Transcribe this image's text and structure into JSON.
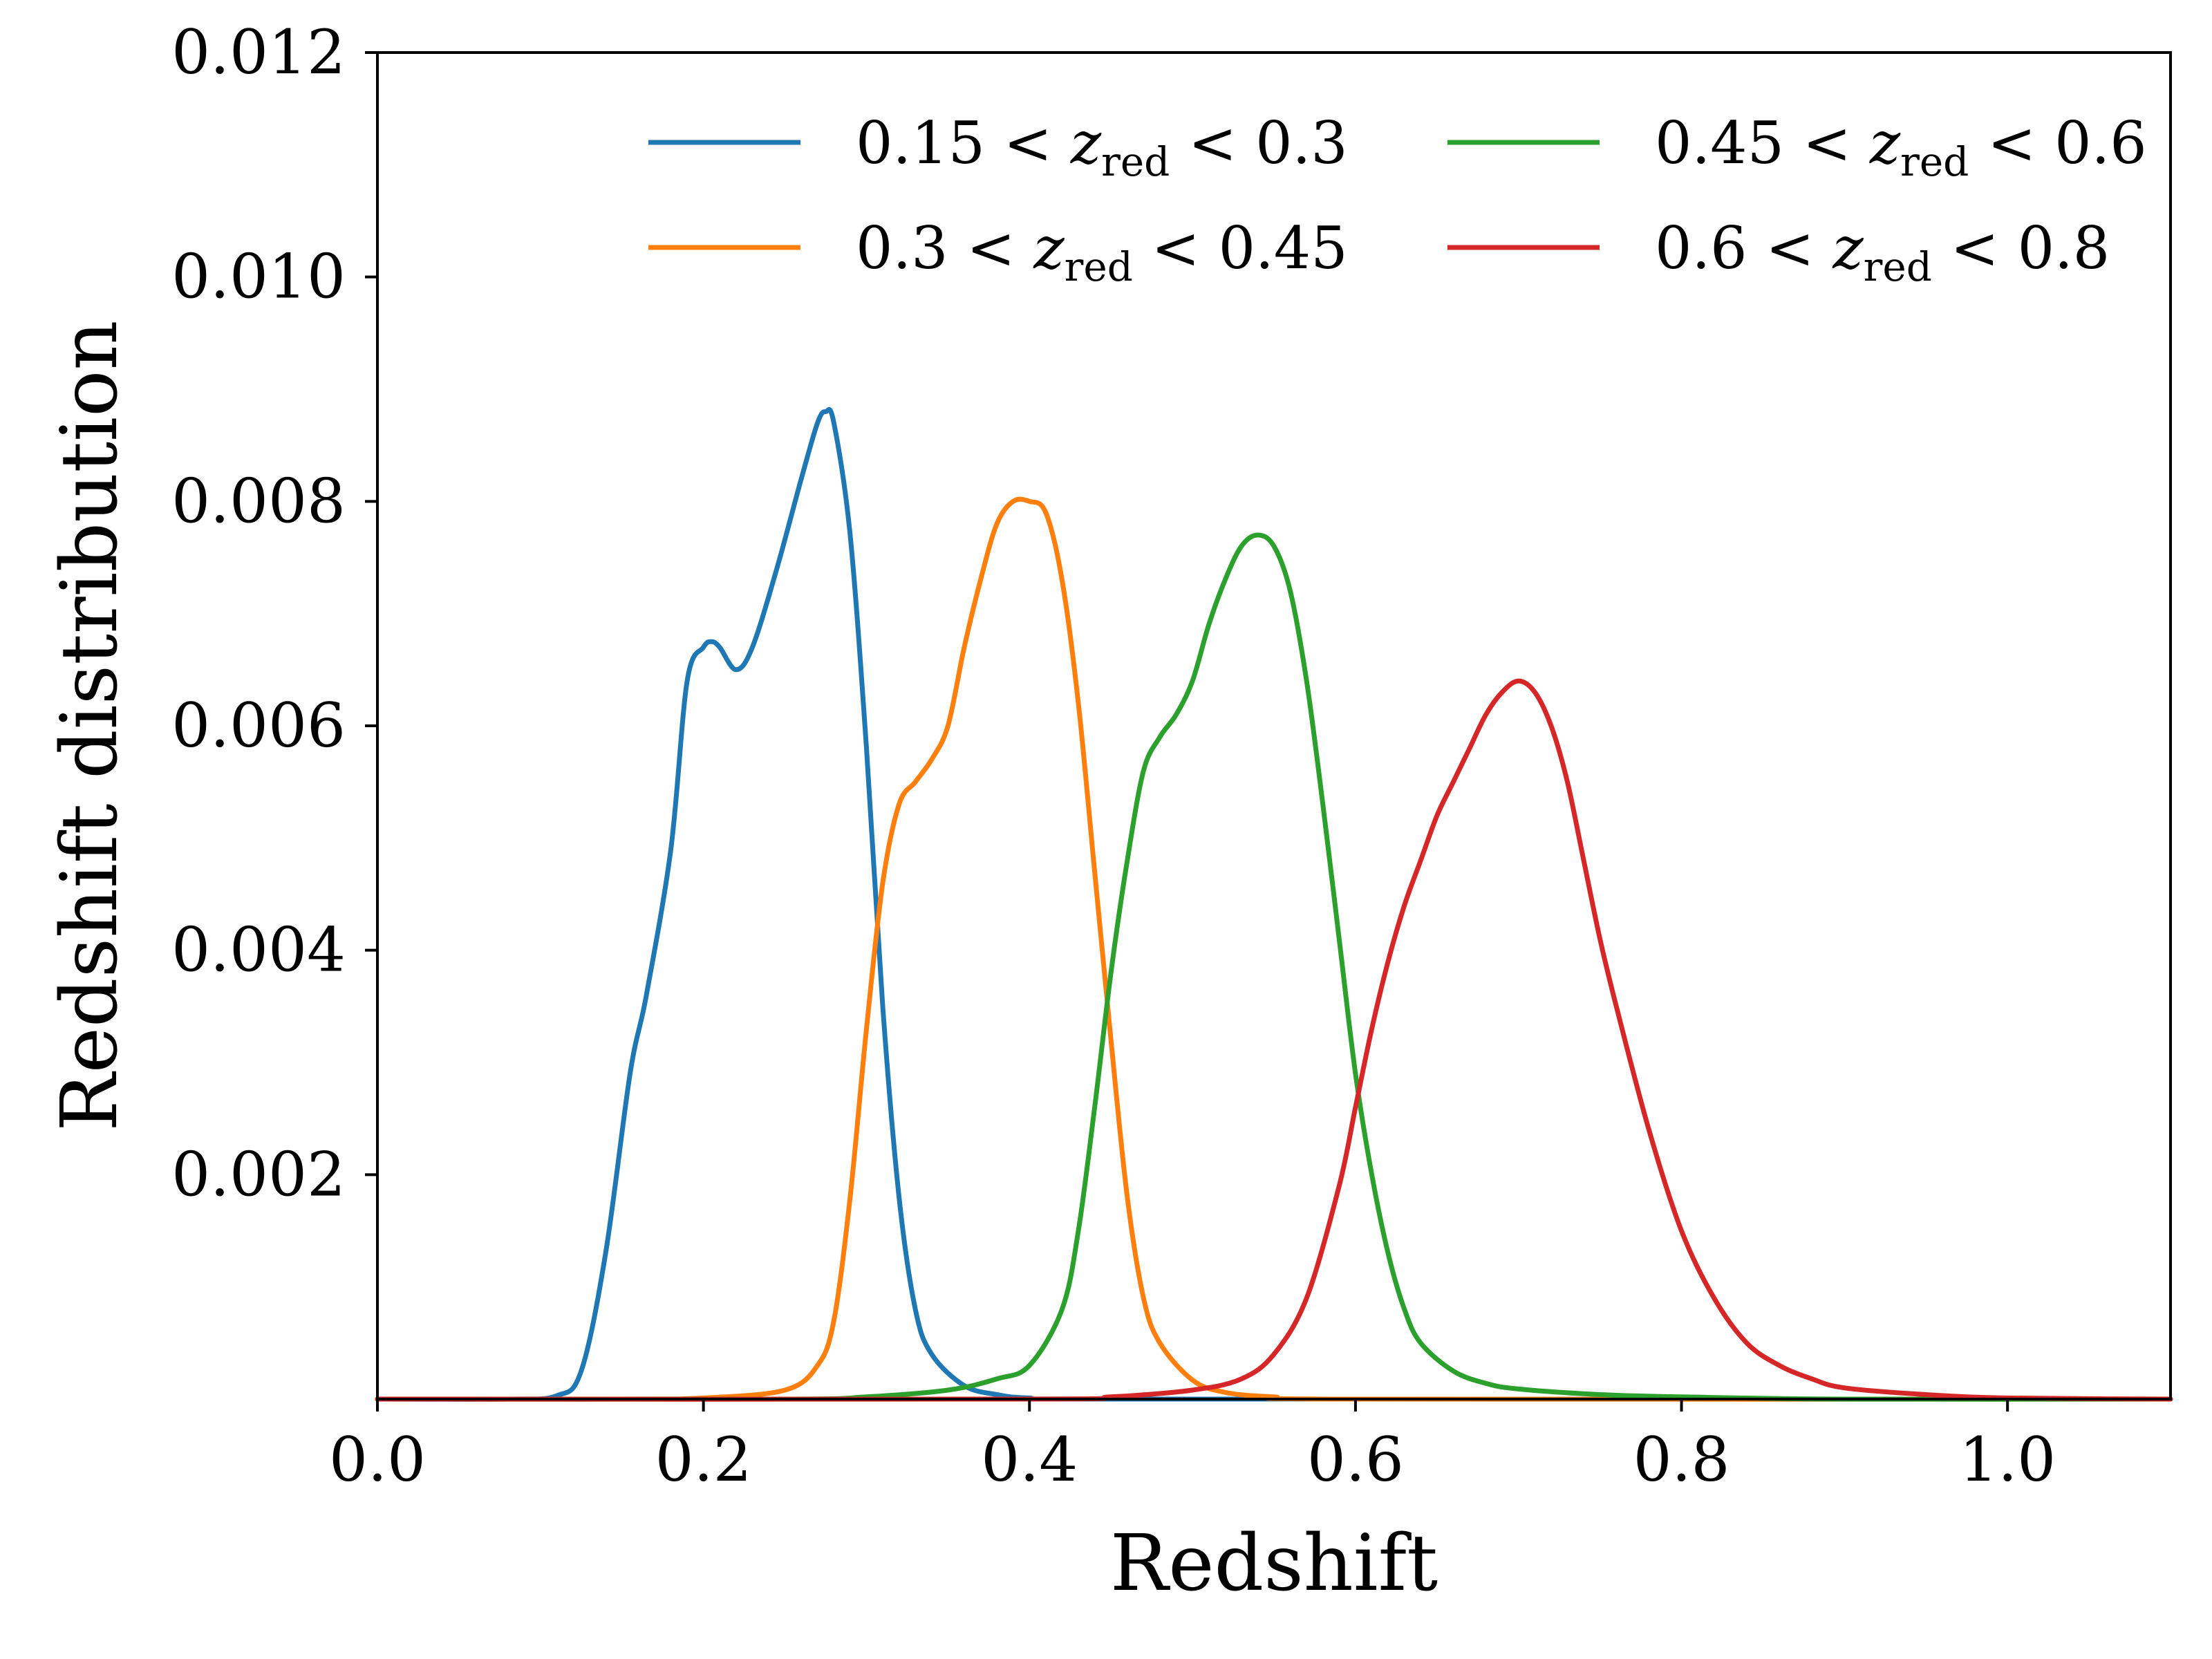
{
  "chart_data": {
    "type": "line",
    "title": "",
    "xlabel": "Redshift",
    "ylabel": "Redshift distribution",
    "xlim": [
      0.0,
      1.1
    ],
    "ylim": [
      0.0,
      0.012
    ],
    "xticks": [
      "0.0",
      "0.2",
      "0.4",
      "0.6",
      "0.8",
      "1.0"
    ],
    "xtick_values": [
      0.0,
      0.2,
      0.4,
      0.6,
      0.8,
      1.0
    ],
    "yticks": [
      "0.002",
      "0.004",
      "0.006",
      "0.008",
      "0.010",
      "0.012"
    ],
    "ytick_values": [
      0.002,
      0.004,
      0.006,
      0.008,
      0.01,
      0.012
    ],
    "grid": false,
    "legend_position": "top-right",
    "legend_columns": 2,
    "series": [
      {
        "name": "0.15 < z_red < 0.3",
        "label": {
          "left": "0.15",
          "sub": "red",
          "right": "0.3"
        },
        "color": "#1f77b4",
        "x": [
          0.0,
          0.08,
          0.11,
          0.125,
          0.14,
          0.155,
          0.165,
          0.18,
          0.19,
          0.2,
          0.205,
          0.21,
          0.22,
          0.23,
          0.245,
          0.26,
          0.27,
          0.275,
          0.28,
          0.29,
          0.3,
          0.31,
          0.32,
          0.33,
          0.34,
          0.36,
          0.38,
          0.4,
          0.45,
          1.1
        ],
        "y": [
          0.0,
          0.0,
          3e-05,
          0.00025,
          0.0013,
          0.0029,
          0.0036,
          0.0049,
          0.0064,
          0.0067,
          0.00675,
          0.0067,
          0.0065,
          0.0067,
          0.0074,
          0.0082,
          0.0087,
          0.0088,
          0.0087,
          0.0077,
          0.0058,
          0.0035,
          0.0018,
          0.0008,
          0.0004,
          0.00012,
          4e-05,
          1e-05,
          0.0,
          0.0
        ]
      },
      {
        "name": "0.3 < z_red < 0.45",
        "label": {
          "left": "0.3",
          "sub": "red",
          "right": "0.45"
        },
        "color": "#ff7f0e",
        "x": [
          0.0,
          0.15,
          0.2,
          0.25,
          0.27,
          0.28,
          0.29,
          0.3,
          0.31,
          0.32,
          0.33,
          0.34,
          0.35,
          0.36,
          0.37,
          0.38,
          0.39,
          0.4,
          0.41,
          0.42,
          0.43,
          0.44,
          0.45,
          0.46,
          0.47,
          0.48,
          0.5,
          0.52,
          0.55,
          0.6,
          1.1
        ],
        "y": [
          0.0,
          0.0,
          1e-05,
          8e-05,
          0.0003,
          0.0007,
          0.0018,
          0.0033,
          0.0046,
          0.0053,
          0.0055,
          0.0057,
          0.006,
          0.0067,
          0.0073,
          0.0078,
          0.008,
          0.008,
          0.0079,
          0.0073,
          0.0062,
          0.0047,
          0.0032,
          0.0018,
          0.0009,
          0.0005,
          0.00017,
          6e-05,
          2e-05,
          0.0,
          0.0
        ]
      },
      {
        "name": "0.45 < z_red < 0.6",
        "label": {
          "left": "0.45",
          "sub": "red",
          "right": "0.6"
        },
        "color": "#2ca02c",
        "x": [
          0.0,
          0.25,
          0.3,
          0.35,
          0.38,
          0.4,
          0.42,
          0.43,
          0.44,
          0.45,
          0.46,
          0.47,
          0.48,
          0.49,
          0.5,
          0.51,
          0.52,
          0.53,
          0.54,
          0.55,
          0.56,
          0.57,
          0.58,
          0.59,
          0.6,
          0.61,
          0.62,
          0.63,
          0.64,
          0.66,
          0.68,
          0.7,
          0.75,
          0.8,
          0.9,
          1.1
        ],
        "y": [
          0.0,
          0.0,
          2e-05,
          8e-05,
          0.00018,
          0.0003,
          0.0008,
          0.0015,
          0.0026,
          0.0038,
          0.0048,
          0.0056,
          0.0059,
          0.0061,
          0.0064,
          0.0069,
          0.0073,
          0.0076,
          0.0077,
          0.0076,
          0.0072,
          0.0064,
          0.0053,
          0.0041,
          0.0029,
          0.002,
          0.0013,
          0.0008,
          0.0005,
          0.00025,
          0.00014,
          9e-05,
          4e-05,
          2e-05,
          0.0,
          0.0
        ]
      },
      {
        "name": "0.6 < z_red < 0.8",
        "label": {
          "left": "0.6",
          "sub": "red",
          "right": "0.8"
        },
        "color": "#d62728",
        "x": [
          0.0,
          0.4,
          0.45,
          0.5,
          0.53,
          0.55,
          0.57,
          0.59,
          0.6,
          0.61,
          0.62,
          0.63,
          0.64,
          0.65,
          0.66,
          0.67,
          0.68,
          0.69,
          0.7,
          0.71,
          0.72,
          0.73,
          0.74,
          0.75,
          0.76,
          0.78,
          0.8,
          0.82,
          0.84,
          0.86,
          0.88,
          0.9,
          0.95,
          1.0,
          1.1
        ],
        "y": [
          0.0,
          0.0,
          2e-05,
          8e-05,
          0.00018,
          0.0004,
          0.0009,
          0.0019,
          0.0026,
          0.0033,
          0.0039,
          0.0044,
          0.0048,
          0.0052,
          0.0055,
          0.0058,
          0.0061,
          0.0063,
          0.0064,
          0.0063,
          0.006,
          0.0055,
          0.0048,
          0.0041,
          0.0035,
          0.0024,
          0.0015,
          0.0009,
          0.0005,
          0.0003,
          0.00018,
          0.0001,
          4e-05,
          1e-05,
          0.0
        ]
      }
    ]
  }
}
